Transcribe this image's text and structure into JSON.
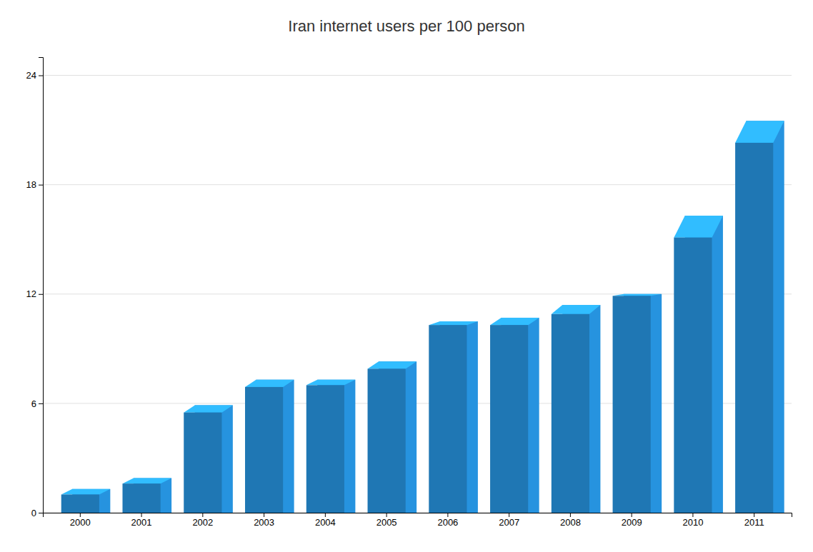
{
  "chart_data": {
    "type": "bar",
    "title": "Iran internet users per 100 person",
    "categories": [
      "2000",
      "2001",
      "2002",
      "2003",
      "2004",
      "2005",
      "2006",
      "2007",
      "2008",
      "2009",
      "2010",
      "2011"
    ],
    "series": [
      {
        "values": [
          1.0,
          1.6,
          5.5,
          6.9,
          7.0,
          7.9,
          10.3,
          10.3,
          10.9,
          11.9,
          15.1,
          20.3
        ]
      },
      {
        "values": [
          1.3,
          1.9,
          5.9,
          7.3,
          7.3,
          8.3,
          10.5,
          10.7,
          11.4,
          12.0,
          16.3,
          21.5
        ]
      }
    ],
    "ylim": [
      0,
      25
    ],
    "yticks": [
      0,
      6,
      12,
      18,
      24
    ],
    "grid": true
  }
}
